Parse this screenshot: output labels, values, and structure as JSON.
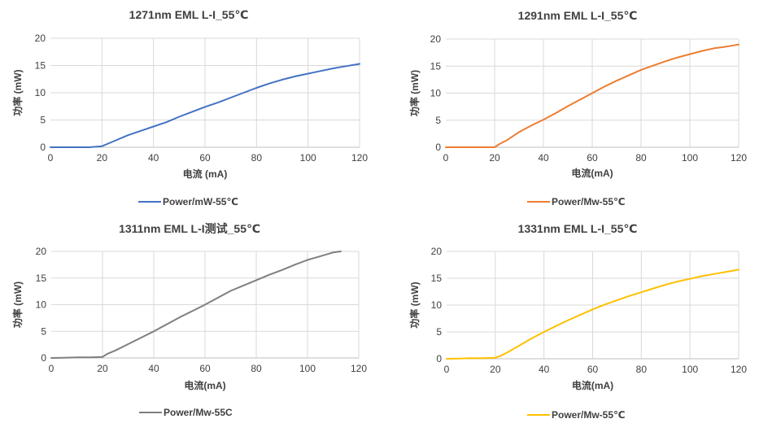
{
  "chart_data": [
    {
      "type": "line",
      "title": "1271nm EML L-I_55℃",
      "xlabel": "电流 (mA)",
      "ylabel": "功率 (mW)",
      "xlim": [
        0,
        120
      ],
      "ylim": [
        0,
        20
      ],
      "xticks": [
        "0",
        "20",
        "40",
        "60",
        "80",
        "100",
        "120"
      ],
      "yticks": [
        "0",
        "5",
        "10",
        "15",
        "20"
      ],
      "grid": true,
      "legend": "bottom",
      "series": [
        {
          "name": "Power/mW-55℃",
          "color": "#4472C4",
          "x": [
            0,
            5,
            10,
            15,
            18,
            20,
            22,
            25,
            30,
            35,
            40,
            45,
            50,
            55,
            60,
            65,
            70,
            75,
            80,
            85,
            90,
            95,
            100,
            105,
            110,
            115,
            120
          ],
          "y": [
            0,
            0,
            0,
            0,
            0.1,
            0.2,
            0.6,
            1.2,
            2.2,
            3.0,
            3.8,
            4.6,
            5.6,
            6.5,
            7.4,
            8.2,
            9.1,
            10.0,
            10.9,
            11.7,
            12.4,
            13.0,
            13.5,
            14.0,
            14.5,
            14.9,
            15.3
          ]
        }
      ]
    },
    {
      "type": "line",
      "title": "1291nm EML L-I_55℃",
      "xlabel": "电流(mA)",
      "ylabel": "功率 (mW)",
      "xlim": [
        0,
        120
      ],
      "ylim": [
        0,
        20
      ],
      "xticks": [
        "0",
        "20",
        "40",
        "60",
        "80",
        "100",
        "120"
      ],
      "yticks": [
        "0",
        "5",
        "10",
        "15",
        "20"
      ],
      "grid": true,
      "legend": "bottom",
      "series": [
        {
          "name": "Power/Mw-55℃",
          "color": "#ED7D31",
          "x": [
            0,
            5,
            10,
            15,
            20,
            22,
            25,
            30,
            35,
            40,
            45,
            50,
            55,
            60,
            65,
            70,
            75,
            80,
            85,
            90,
            95,
            100,
            105,
            110,
            115,
            120
          ],
          "y": [
            0,
            0,
            0,
            0,
            0,
            0.6,
            1.3,
            2.8,
            4.0,
            5.1,
            6.3,
            7.6,
            8.8,
            10.0,
            11.2,
            12.3,
            13.3,
            14.3,
            15.1,
            15.9,
            16.6,
            17.2,
            17.8,
            18.3,
            18.6,
            19.0
          ]
        }
      ]
    },
    {
      "type": "line",
      "title": "1311nm EML L-I测试_55℃",
      "xlabel": "电流(mA)",
      "ylabel": "功率 (mW)",
      "xlim": [
        0,
        120
      ],
      "ylim": [
        0,
        20
      ],
      "xticks": [
        "0",
        "20",
        "40",
        "60",
        "80",
        "100",
        "120"
      ],
      "yticks": [
        "0",
        "5",
        "10",
        "15",
        "20"
      ],
      "grid": true,
      "legend": "bottom",
      "series": [
        {
          "name": "Power/Mw-55C",
          "color": "#7F7F7F",
          "x": [
            0,
            5,
            10,
            15,
            18,
            20,
            22,
            25,
            30,
            35,
            40,
            45,
            50,
            55,
            60,
            65,
            70,
            75,
            80,
            85,
            90,
            95,
            100,
            105,
            110,
            113
          ],
          "y": [
            0,
            0.05,
            0.1,
            0.1,
            0.15,
            0.2,
            0.8,
            1.4,
            2.6,
            3.8,
            5.0,
            6.3,
            7.6,
            8.8,
            10.0,
            11.3,
            12.6,
            13.6,
            14.6,
            15.6,
            16.5,
            17.5,
            18.4,
            19.1,
            19.8,
            20.0
          ]
        }
      ]
    },
    {
      "type": "line",
      "title": "1331nm EML L-I_55℃",
      "xlabel": "电流(mA)",
      "ylabel": "功率 (mW)",
      "xlim": [
        0,
        120
      ],
      "ylim": [
        0,
        20
      ],
      "xticks": [
        "0",
        "20",
        "40",
        "60",
        "80",
        "100",
        "120"
      ],
      "yticks": [
        "0",
        "5",
        "10",
        "15",
        "20"
      ],
      "grid": true,
      "legend": "bottom",
      "series": [
        {
          "name": "Power/Mw-55℃",
          "color": "#FFC000",
          "x": [
            0,
            5,
            10,
            15,
            20,
            22,
            25,
            30,
            35,
            40,
            45,
            50,
            55,
            60,
            65,
            70,
            75,
            80,
            85,
            90,
            95,
            100,
            105,
            110,
            115,
            120
          ],
          "y": [
            0,
            0.05,
            0.1,
            0.1,
            0.2,
            0.5,
            1.2,
            2.5,
            3.8,
            5.0,
            6.1,
            7.2,
            8.2,
            9.2,
            10.1,
            10.9,
            11.7,
            12.4,
            13.1,
            13.8,
            14.4,
            14.9,
            15.4,
            15.8,
            16.2,
            16.6
          ]
        }
      ]
    }
  ]
}
